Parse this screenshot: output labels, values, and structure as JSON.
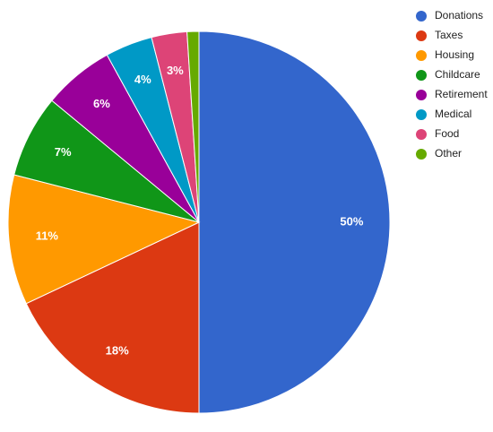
{
  "chart_data": {
    "type": "pie",
    "categories": [
      "Donations",
      "Taxes",
      "Housing",
      "Childcare",
      "Retirement",
      "Medical",
      "Food",
      "Other"
    ],
    "values": [
      50,
      18,
      11,
      7,
      6,
      4,
      3,
      1
    ],
    "value_labels": [
      "50%",
      "18%",
      "11%",
      "7%",
      "6%",
      "4%",
      "3%",
      null
    ],
    "colors": [
      "#3366cc",
      "#dc3912",
      "#ff9900",
      "#109618",
      "#990099",
      "#0099c6",
      "#dd4477",
      "#66aa00"
    ],
    "legend": "right"
  }
}
